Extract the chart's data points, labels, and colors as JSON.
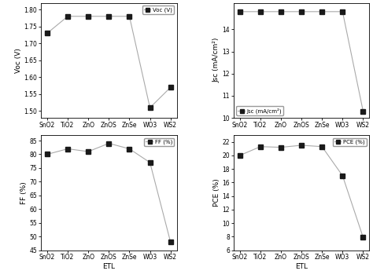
{
  "etl_labels": [
    "SnO2",
    "TiO2",
    "ZnO",
    "ZnOS",
    "ZnSe",
    "WO3",
    "WS2"
  ],
  "voc": [
    1.73,
    1.78,
    1.78,
    1.78,
    1.78,
    1.51,
    1.57
  ],
  "jsc": [
    14.8,
    14.8,
    14.8,
    14.8,
    14.8,
    14.8,
    10.3
  ],
  "ff": [
    80.0,
    82.0,
    81.0,
    84.0,
    82.0,
    77.0,
    48.0
  ],
  "pce": [
    20.0,
    21.3,
    21.2,
    21.5,
    21.3,
    17.0,
    7.9
  ],
  "voc_ylim": [
    1.48,
    1.82
  ],
  "voc_yticks": [
    1.5,
    1.55,
    1.6,
    1.65,
    1.7,
    1.75,
    1.8
  ],
  "jsc_ylim": [
    10.0,
    15.2
  ],
  "jsc_yticks": [
    10,
    11,
    12,
    13,
    14
  ],
  "ff_ylim": [
    45,
    87
  ],
  "ff_yticks": [
    45,
    50,
    55,
    60,
    65,
    70,
    75,
    80,
    85
  ],
  "pce_ylim": [
    6,
    23
  ],
  "pce_yticks": [
    6,
    8,
    10,
    12,
    14,
    16,
    18,
    20,
    22
  ],
  "marker": "s",
  "marker_color": "#1a1a1a",
  "line_color": "#aaaaaa",
  "marker_size": 4,
  "label_voc": "Voc (V)",
  "label_jsc": "Jsc (mA/cm²)",
  "label_ff": "FF (%)",
  "label_pce": "PCE (%)",
  "legend_voc": "Voc (V)",
  "legend_jsc": "Jsc (mA/cm²)",
  "legend_ff": "FF (%)",
  "legend_pce": "PCE (%)",
  "xlabel": "ETL",
  "bg_color": "white"
}
